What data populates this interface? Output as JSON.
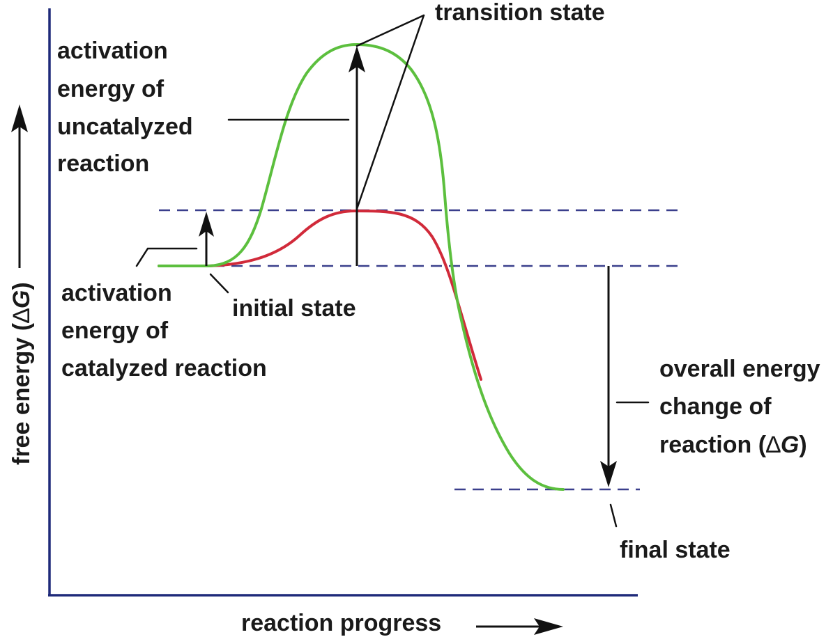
{
  "axes": {
    "y_label_prefix": "free energy (",
    "y_label_delta": "∆",
    "y_label_g": "G",
    "y_label_suffix": ")",
    "x_label": "reaction progress"
  },
  "labels": {
    "transition_state": "transition state",
    "initial_state": "initial state",
    "final_state": "final state",
    "uncatalyzed": [
      "activation",
      "energy of",
      "uncatalyzed",
      "reaction"
    ],
    "catalyzed": [
      "activation",
      "energy of",
      "catalyzed reaction"
    ],
    "overall_lines": [
      "overall energy",
      "change of"
    ],
    "overall_last_prefix": "reaction (",
    "overall_last_delta": "∆",
    "overall_last_g": "G",
    "overall_last_suffix": ")"
  },
  "colors": {
    "uncatalyzed_curve": "#5cbf3e",
    "catalyzed_curve": "#d12a3a",
    "axis": "#1f2a7a",
    "dashed_level": "#3a3f8c"
  }
}
